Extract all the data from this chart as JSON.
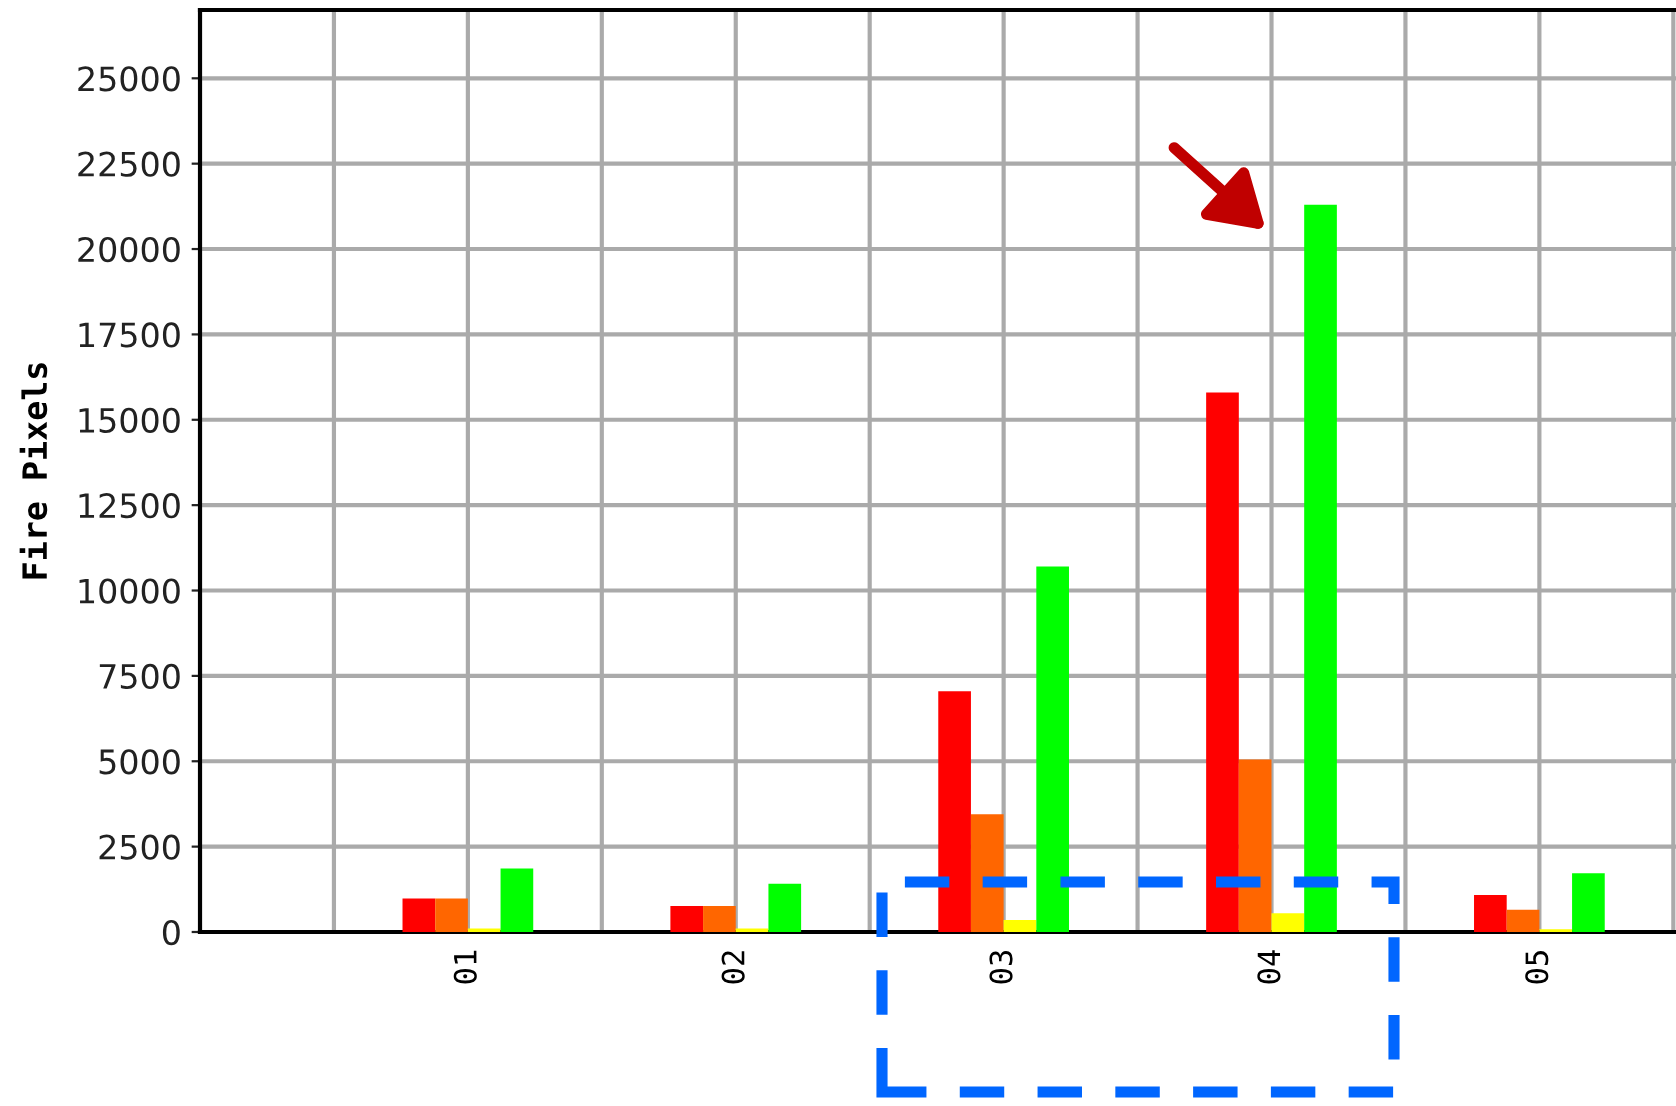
{
  "chart_data": {
    "type": "bar",
    "ylabel": "Fire Pixels",
    "categories": [
      "01",
      "02",
      "03",
      "04",
      "05"
    ],
    "series": [
      {
        "color": "#ff0000",
        "values": [
          980,
          760,
          7050,
          15800,
          1080
        ]
      },
      {
        "color": "#ff6600",
        "values": [
          980,
          760,
          3450,
          5050,
          650
        ]
      },
      {
        "color": "#ffff00",
        "values": [
          100,
          100,
          350,
          550,
          80
        ]
      },
      {
        "color": "#00ff00",
        "values": [
          1860,
          1410,
          10700,
          21300,
          1720
        ]
      }
    ],
    "ylim": [
      0,
      27000
    ],
    "yticks": [
      0,
      2500,
      5000,
      7500,
      10000,
      12500,
      15000,
      17500,
      20000,
      22500,
      25000
    ],
    "grid": true
  }
}
